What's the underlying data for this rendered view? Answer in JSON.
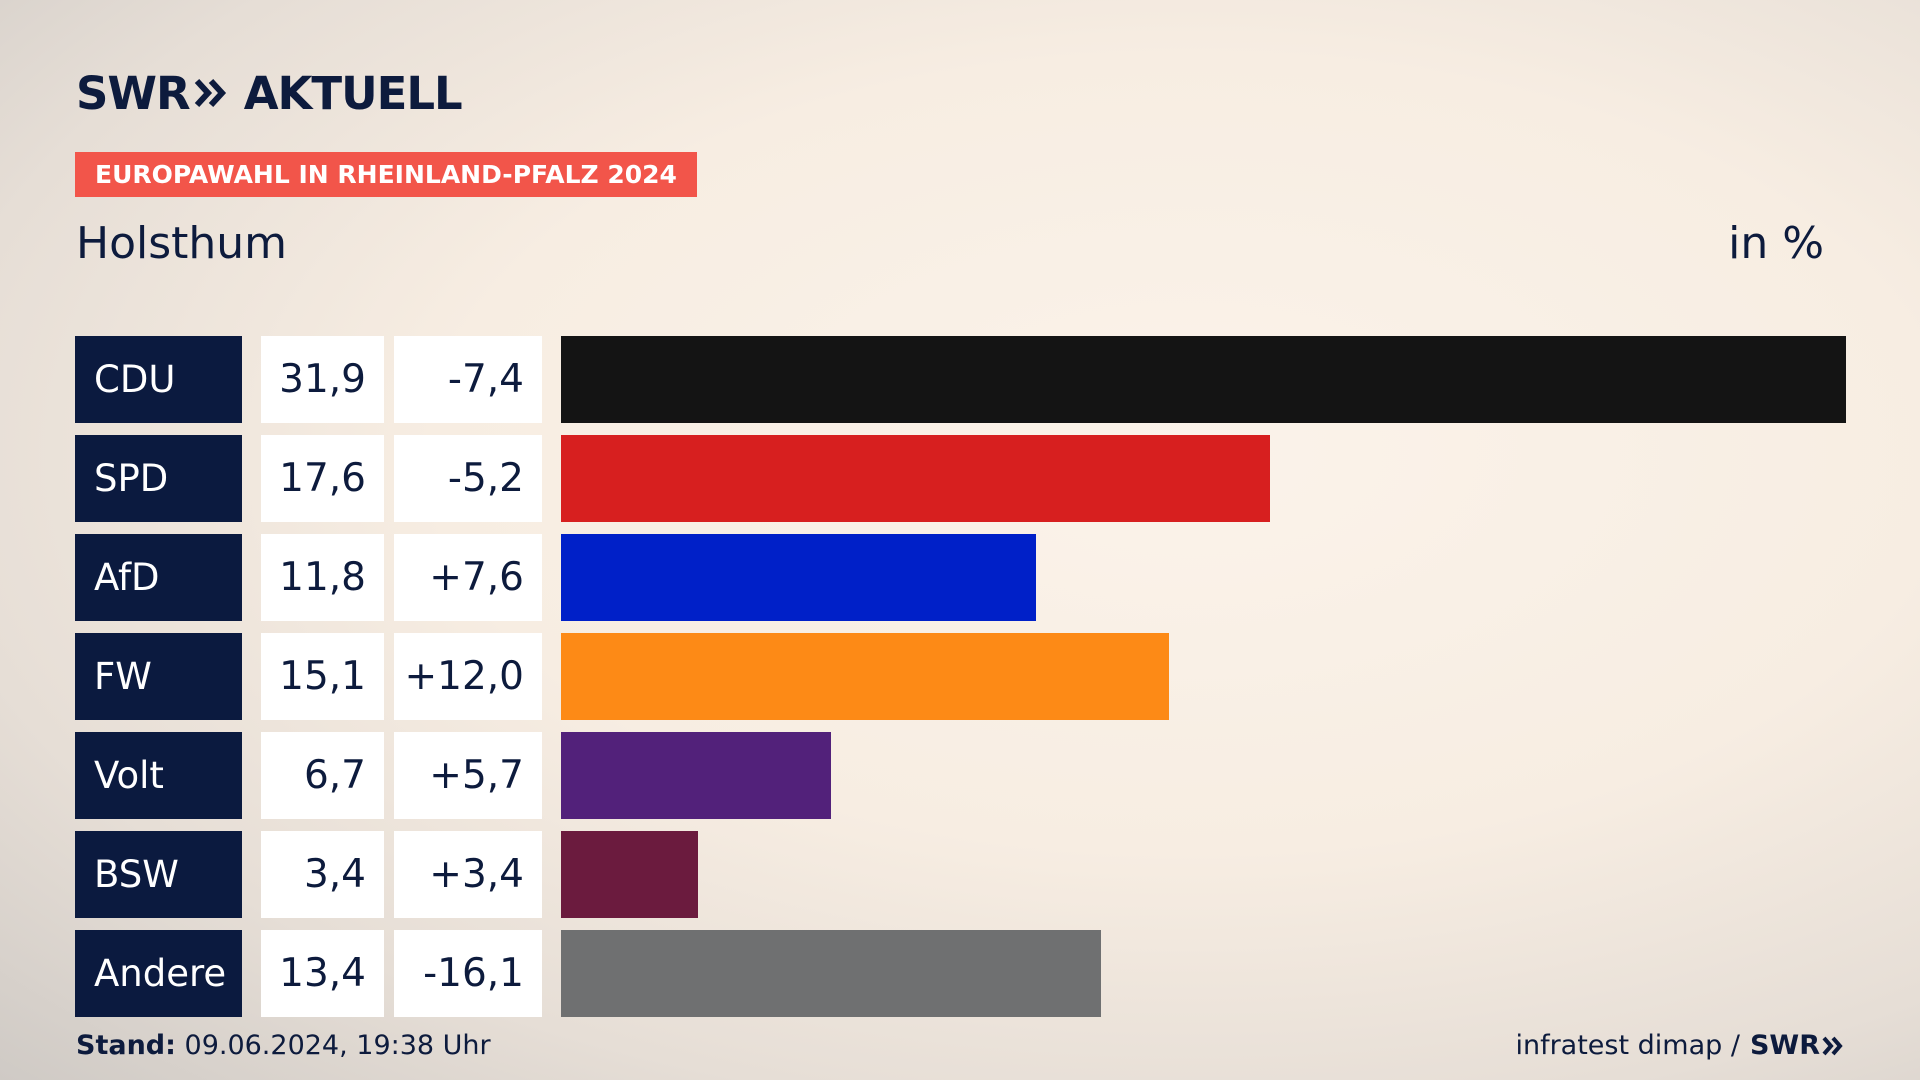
{
  "brand": {
    "swr": "SWR",
    "product": "AKTUELL"
  },
  "tag": "EUROPAWAHL IN RHEINLAND-PFALZ 2024",
  "place": "Holsthum",
  "unit": "in %",
  "chart_data": {
    "type": "bar",
    "orientation": "horizontal",
    "categories": [
      "CDU",
      "SPD",
      "AfD",
      "FW",
      "Volt",
      "BSW",
      "Andere"
    ],
    "values": [
      31.9,
      17.6,
      11.8,
      15.1,
      6.7,
      3.4,
      13.4
    ],
    "value_labels": [
      "31,9",
      "17,6",
      "11,8",
      "15,1",
      "6,7",
      "3,4",
      "13,4"
    ],
    "change_labels": [
      "-7,4",
      "-5,2",
      "+7,6",
      "+12,0",
      "+5,7",
      "+3,4",
      "-16,1"
    ],
    "colors": [
      "#141414",
      "#d71f1f",
      "#0020c8",
      "#fd8a16",
      "#52217a",
      "#6b1b3e",
      "#6f7071"
    ],
    "xlim": [
      0,
      31.9
    ]
  },
  "footer": {
    "stand_label": "Stand:",
    "stand_value": "09.06.2024, 19:38 Uhr",
    "source": "infratest dimap /",
    "source_brand": "SWR"
  }
}
